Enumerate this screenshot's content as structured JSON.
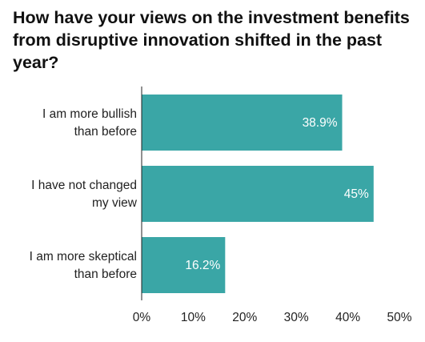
{
  "chart_data": {
    "type": "bar",
    "orientation": "horizontal",
    "title": "How have your views on the investment benefits from disruptive innovation shifted in the past year?",
    "categories": [
      [
        "I am more bullish",
        "than before"
      ],
      [
        "I have not changed",
        "my view"
      ],
      [
        "I am more skeptical",
        "than before"
      ]
    ],
    "values": [
      38.9,
      45,
      16.2
    ],
    "value_labels": [
      "38.9%",
      "45%",
      "16.2%"
    ],
    "x_ticks": [
      "0%",
      "10%",
      "20%",
      "30%",
      "40%",
      "50%"
    ],
    "xlim": [
      0,
      50
    ],
    "grid": false,
    "bar_color": "#3aa6a6",
    "axis_color": "#222222"
  }
}
